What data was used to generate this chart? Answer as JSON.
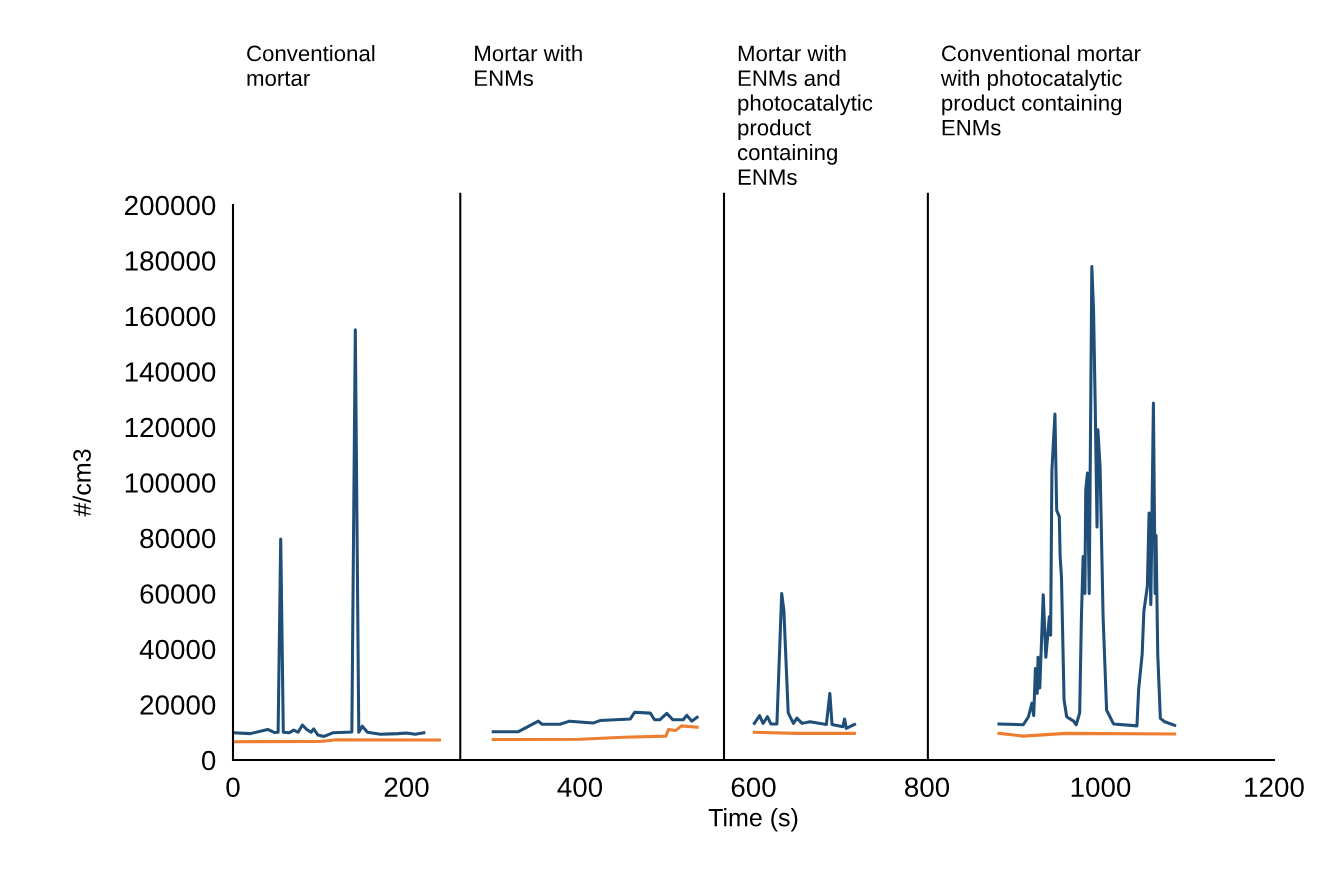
{
  "chart_data": {
    "type": "line",
    "xlabel": "Time (s)",
    "ylabel": "#/cm3",
    "xlim": [
      0,
      1200
    ],
    "xticks": [
      0,
      200,
      400,
      600,
      800,
      1000,
      1200
    ],
    "ylim": [
      0,
      200000
    ],
    "yticks": [
      0,
      20000,
      40000,
      60000,
      80000,
      100000,
      120000,
      140000,
      160000,
      180000,
      200000
    ],
    "grid": false,
    "legend": false,
    "marker": "none",
    "line_style": "solid",
    "ref_lines": [
      {
        "axis": "x",
        "value": 262,
        "color": "#000000"
      },
      {
        "axis": "x",
        "value": 566,
        "color": "#000000"
      },
      {
        "axis": "x",
        "value": 801,
        "color": "#000000"
      }
    ],
    "annotations": [
      "Conventional\nmortar",
      "Mortar with\nENMs",
      "Mortar with\nENMs and\nphotocatalytic\nproduct\ncontaining\nENMs",
      "Conventional mortar\nwith photocatalytic\nproduct containing\nENMs"
    ],
    "series": [
      {
        "color": "#1f4e79",
        "x": [
          0,
          20,
          40,
          48,
          52,
          55,
          58,
          65,
          70,
          75,
          80,
          85,
          90,
          93,
          98,
          105,
          115,
          130,
          137,
          141,
          145,
          149,
          155,
          170,
          190,
          200,
          210,
          220,
          null,
          300,
          329,
          352,
          356,
          377,
          388,
          415,
          423,
          458,
          463,
          481,
          486,
          492,
          500,
          507,
          519,
          523,
          529,
          535,
          null,
          601,
          607,
          611,
          616,
          620,
          627,
          632.5,
          635,
          640,
          646,
          650,
          656,
          665,
          684,
          688,
          690.5,
          703,
          705,
          707,
          716.5,
          null,
          883,
          911,
          917,
          921,
          923,
          925,
          927,
          928,
          930,
          934,
          937,
          941,
          942.5,
          944,
          947.5,
          949.5,
          952.5,
          953.5,
          955,
          958,
          961,
          969,
          972,
          976,
          978,
          980,
          982,
          983,
          985,
          987,
          990,
          992,
          994,
          996,
          997,
          999.5,
          1003,
          1007,
          1015,
          1042,
          1044,
          1048,
          1050,
          1054,
          1056,
          1058,
          1061,
          1063,
          1064,
          1066,
          1069,
          1074,
          1085.5
        ],
        "values": [
          9800,
          9500,
          11000,
          9900,
          10000,
          79600,
          10000,
          9800,
          10800,
          10000,
          12600,
          11000,
          10000,
          11200,
          9000,
          8500,
          9800,
          10000,
          10100,
          155000,
          10000,
          12200,
          10000,
          9300,
          9500,
          9700,
          9300,
          9800,
          null,
          10200,
          10200,
          14000,
          12900,
          12900,
          14000,
          13300,
          14200,
          14800,
          17200,
          16900,
          14500,
          14500,
          16800,
          14500,
          14500,
          16100,
          14000,
          15400,
          null,
          13200,
          16000,
          13200,
          15600,
          13000,
          13000,
          60000,
          54000,
          17000,
          13200,
          15100,
          13200,
          13800,
          12800,
          24000,
          12800,
          12000,
          14800,
          11400,
          12800,
          null,
          13000,
          12700,
          15600,
          20500,
          16000,
          33000,
          24000,
          37000,
          26000,
          59500,
          37000,
          51600,
          45000,
          104500,
          124700,
          90000,
          87700,
          73000,
          66000,
          21600,
          15600,
          14000,
          12700,
          17000,
          51600,
          73300,
          60000,
          97300,
          103400,
          60000,
          177800,
          162000,
          126000,
          84000,
          119000,
          105700,
          51600,
          18000,
          13000,
          12300,
          25600,
          38000,
          53600,
          62500,
          89000,
          56000,
          128600,
          60000,
          81000,
          38000,
          15000,
          13800,
          12500
        ]
      },
      {
        "color": "#ed7d31",
        "x": [
          0,
          100,
          120,
          238,
          null,
          300,
          400,
          450,
          499,
          502,
          510,
          517,
          535,
          null,
          601,
          650,
          716.5,
          null,
          883,
          911,
          960,
          1085.5
        ],
        "values": [
          6600,
          6700,
          7300,
          7200,
          null,
          7400,
          7500,
          8200,
          8600,
          11000,
          10600,
          12300,
          11800,
          null,
          10000,
          9600,
          9600,
          null,
          9600,
          8600,
          9600,
          9400
        ]
      }
    ]
  }
}
